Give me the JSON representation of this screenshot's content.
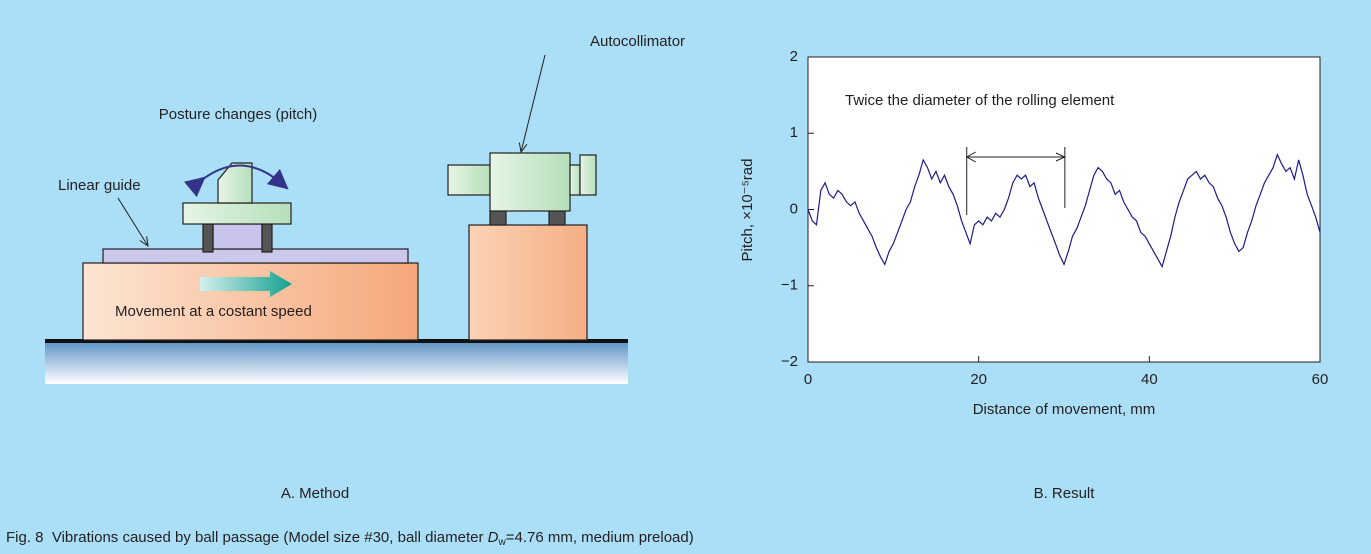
{
  "diagram": {
    "labels": {
      "posture": "Posture changes (pitch)",
      "linear_guide": "Linear guide",
      "autocollimator": "Autocollimator",
      "movement": "Movement at a costant speed"
    },
    "panel_a": "A. Method"
  },
  "chart_data": {
    "type": "line",
    "panel": "B. Result",
    "xlabel": "Distance of movement, mm",
    "ylabel": "Pitch, ×10⁻⁵rad",
    "xlim": [
      0,
      60
    ],
    "ylim": [
      -2,
      2
    ],
    "xticks": [
      0,
      20,
      40,
      60
    ],
    "yticks": [
      {
        "value": -2,
        "label": "−2"
      },
      {
        "value": -1,
        "label": "−1"
      },
      0,
      1,
      2
    ],
    "color": "#1c1c8c",
    "annotation": {
      "text": "Twice the diameter of the rolling element",
      "x": [
        18.6,
        30.1
      ]
    },
    "x": [
      0,
      0.5,
      1,
      1.5,
      2,
      2.5,
      3,
      3.5,
      4,
      4.5,
      5,
      5.5,
      6,
      6.5,
      7,
      7.5,
      8,
      8.5,
      9,
      9.5,
      10,
      10.5,
      11,
      11.5,
      12,
      12.5,
      13,
      13.5,
      14,
      14.5,
      15,
      15.5,
      16,
      16.5,
      17,
      17.5,
      18,
      18.5,
      19,
      19.5,
      20,
      20.5,
      21,
      21.5,
      22,
      22.5,
      23,
      23.5,
      24,
      24.5,
      25,
      25.5,
      26,
      26.5,
      27,
      27.5,
      28,
      28.5,
      29,
      29.5,
      30,
      30.5,
      31,
      31.5,
      32,
      32.5,
      33,
      33.5,
      34,
      34.5,
      35,
      35.5,
      36,
      36.5,
      37,
      37.5,
      38,
      38.5,
      39,
      39.5,
      40,
      40.5,
      41,
      41.5,
      42,
      42.5,
      43,
      43.5,
      44,
      44.5,
      45,
      45.5,
      46,
      46.5,
      47,
      47.5,
      48,
      48.5,
      49,
      49.5,
      50,
      50.5,
      51,
      51.5,
      52,
      52.5,
      53,
      53.5,
      54,
      54.5,
      55,
      55.5,
      56,
      56.5,
      57,
      57.5,
      58,
      58.5,
      59,
      59.5,
      60
    ],
    "values": [
      0,
      -0.15,
      -0.2,
      0.25,
      0.35,
      0.2,
      0.15,
      0.25,
      0.2,
      0.1,
      0.05,
      0.1,
      -0.05,
      -0.15,
      -0.25,
      -0.35,
      -0.5,
      -0.62,
      -0.72,
      -0.55,
      -0.45,
      -0.3,
      -0.15,
      0,
      0.1,
      0.3,
      0.45,
      0.65,
      0.55,
      0.4,
      0.5,
      0.35,
      0.45,
      0.3,
      0.2,
      0.05,
      -0.15,
      -0.3,
      -0.45,
      -0.2,
      -0.15,
      -0.2,
      -0.1,
      -0.15,
      -0.05,
      -0.1,
      0,
      0.15,
      0.35,
      0.45,
      0.4,
      0.45,
      0.3,
      0.35,
      0.15,
      0,
      -0.15,
      -0.3,
      -0.45,
      -0.6,
      -0.72,
      -0.55,
      -0.35,
      -0.25,
      -0.1,
      0.05,
      0.25,
      0.45,
      0.55,
      0.5,
      0.4,
      0.35,
      0.2,
      0.25,
      0.1,
      0,
      -0.1,
      -0.15,
      -0.3,
      -0.35,
      -0.45,
      -0.55,
      -0.65,
      -0.75,
      -0.55,
      -0.35,
      -0.1,
      0.1,
      0.25,
      0.4,
      0.45,
      0.5,
      0.4,
      0.45,
      0.35,
      0.3,
      0.15,
      0.05,
      -0.1,
      -0.3,
      -0.45,
      -0.55,
      -0.5,
      -0.3,
      -0.15,
      0.05,
      0.2,
      0.35,
      0.45,
      0.55,
      0.72,
      0.6,
      0.5,
      0.55,
      0.4,
      0.65,
      0.45,
      0.2,
      0.05,
      -0.1,
      -0.3
    ]
  },
  "caption": {
    "prefix": "Fig. 8  Vibrations caused by ball passage (Model size #30, ball diameter ",
    "symbol": "D",
    "subscript": "w",
    "suffix": "=4.76 mm, medium preload)"
  }
}
